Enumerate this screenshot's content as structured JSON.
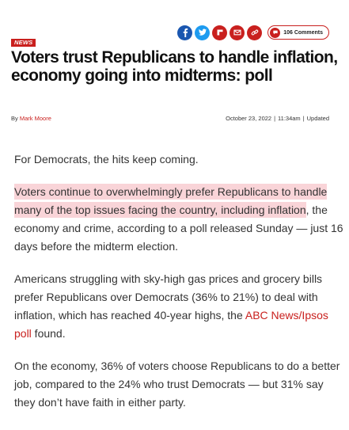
{
  "share": {
    "icons": [
      "facebook-icon",
      "twitter-icon",
      "flipboard-icon",
      "email-icon",
      "copy-link-icon"
    ],
    "comments_label": "106 Comments"
  },
  "article": {
    "section": "NEWS",
    "headline": "Voters trust Republicans to handle inflation, economy going into midterms: poll",
    "byline_prefix": "By",
    "author": "Mark Moore",
    "date": "October 23, 2022",
    "time": "11:34am",
    "updated_label": "Updated",
    "paragraphs": {
      "p1": "For Democrats, the hits keep coming.",
      "p2_highlight": "Voters continue to overwhelmingly prefer Republicans to handle many of the top issues facing the country, including inflation",
      "p2_rest": ", the economy and crime, according to a poll released Sunday — just 16 days before the midterm election.",
      "p3_text": "Americans struggling with sky-high gas prices and grocery bills prefer Republicans over Democrats (36% to 21%) to deal with inflation, which has reached 40-year highs, the ",
      "p3_link": "ABC News/Ipsos poll",
      "p3_end": " found.",
      "p4": "On the economy, 36% of voters choose Republicans to do a better job, compared to the 24% who trust Democrats — but 31% say they don’t have faith in either party."
    }
  },
  "colors": {
    "brand_red": "#c9201e",
    "facebook_blue": "#1a57b0",
    "twitter_blue": "#1d9bf0",
    "highlight_pink": "#f9d4d8"
  }
}
